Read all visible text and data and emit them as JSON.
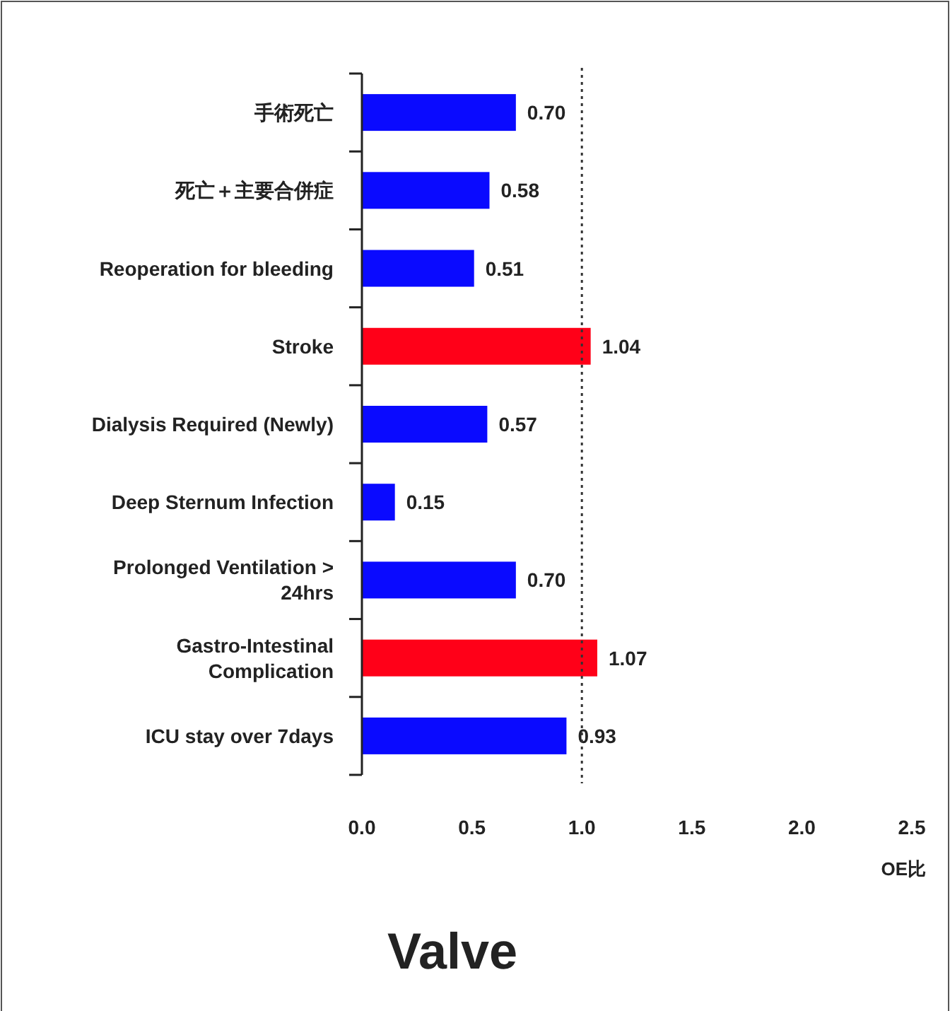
{
  "chart_data": {
    "type": "bar",
    "orientation": "horizontal",
    "title": "Valve",
    "xlabel": "OE比",
    "categories": [
      "手術死亡",
      "死亡＋主要合併症",
      "Reoperation for bleeding",
      "Stroke",
      "Dialysis Required (Newly)",
      "Deep Sternum Infection",
      "Prolonged Ventilation > 24hrs",
      "Gastro-Intestinal Complication",
      "ICU stay over 7days"
    ],
    "values": [
      0.7,
      0.58,
      0.51,
      1.04,
      0.57,
      0.15,
      0.7,
      1.07,
      0.93
    ],
    "value_labels": [
      "0.70",
      "0.58",
      "0.51",
      "1.04",
      "0.57",
      "0.15",
      "0.70",
      "1.07",
      "0.93"
    ],
    "colors": [
      "#0a0aff",
      "#0a0aff",
      "#0a0aff",
      "#ff0018",
      "#0a0aff",
      "#0a0aff",
      "#0a0aff",
      "#ff0018",
      "#0a0aff"
    ],
    "xlim": [
      0,
      2.5
    ],
    "xticks": [
      {
        "value": 0,
        "label": "0.0"
      },
      {
        "value": 0.5,
        "label": "0.5"
      },
      {
        "value": 1,
        "label": "1.0"
      },
      {
        "value": 1.5,
        "label": "1.5"
      },
      {
        "value": 2,
        "label": "2.0"
      },
      {
        "value": 2.5,
        "label": "2.5"
      }
    ],
    "ref_lines": [
      {
        "axis": "x",
        "value": 1,
        "line_style": "dotted",
        "color": "#333333"
      }
    ],
    "grid": false
  }
}
